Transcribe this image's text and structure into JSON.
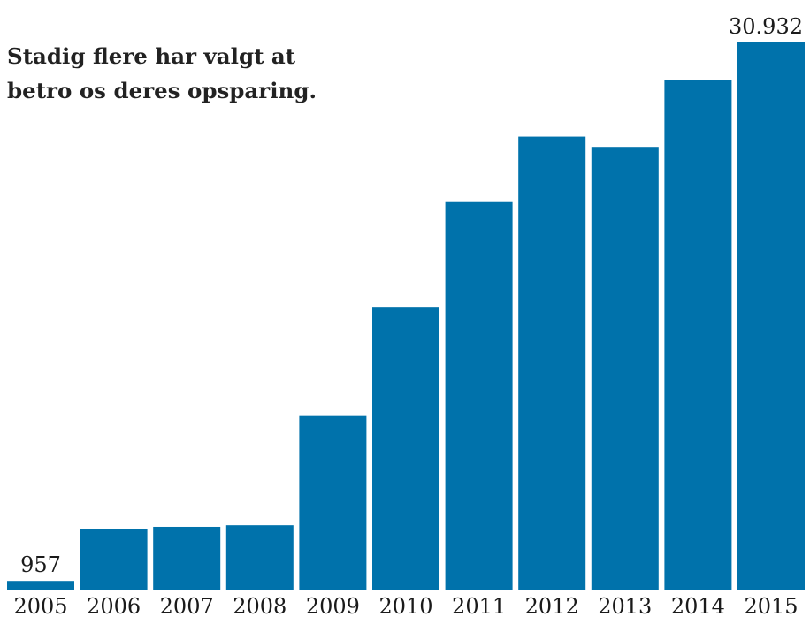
{
  "chart_data": {
    "type": "bar",
    "title": "Stadig flere har valgt at betro os deres opsparing.",
    "categories": [
      "2005",
      "2006",
      "2007",
      "2008",
      "2009",
      "2010",
      "2011",
      "2012",
      "2013",
      "2014",
      "2015"
    ],
    "values": [
      957,
      6120,
      6380,
      6540,
      17480,
      28420,
      39000,
      45480,
      44450,
      51200,
      30932
    ],
    "data_labels": [
      {
        "index": 0,
        "text": "957"
      },
      {
        "index": 10,
        "text": "30.932"
      }
    ],
    "xlabel": "",
    "ylabel": "",
    "ylim": [
      0,
      56000
    ],
    "grid": false,
    "legend": "none",
    "bar_color": "#0072ab"
  }
}
